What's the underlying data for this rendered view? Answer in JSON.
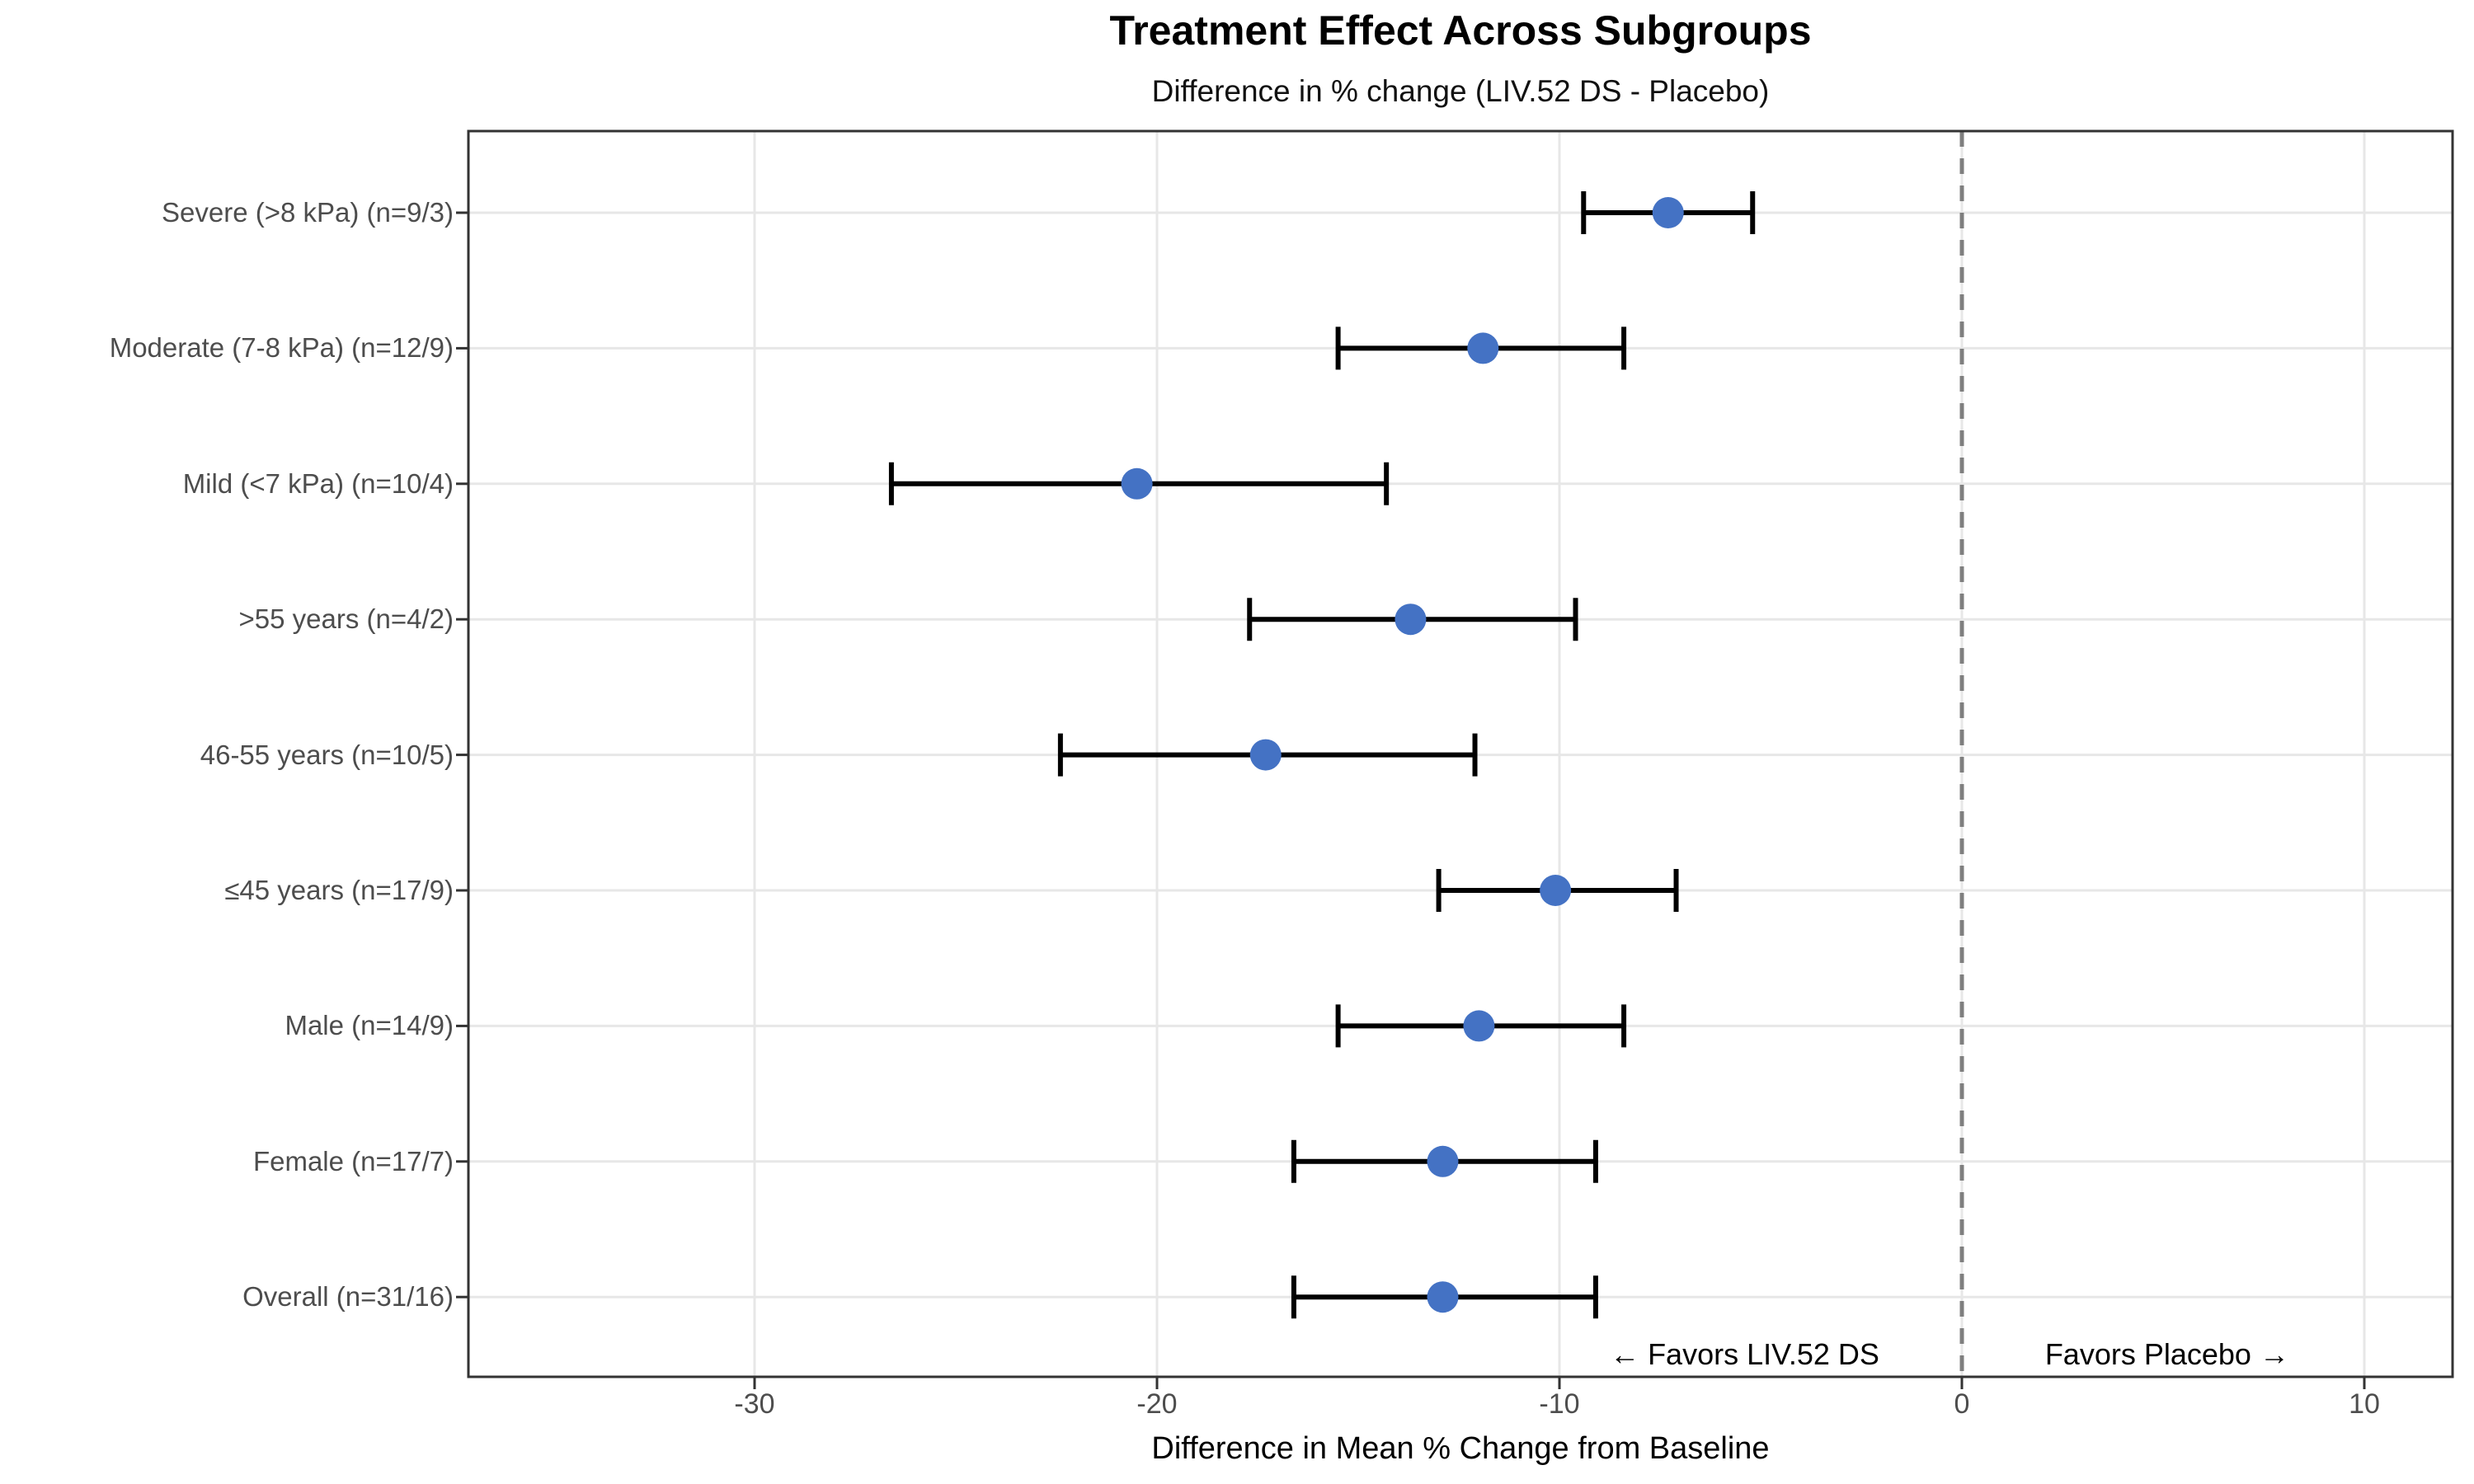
{
  "header": {
    "title": "Treatment Effect Across Subgroups",
    "subtitle": "Difference in % change (LIV.52 DS - Placebo)"
  },
  "chart_data": {
    "type": "scatter",
    "variant": "forest-plot",
    "orientation": "horizontal",
    "title": "Treatment Effect Across Subgroups",
    "subtitle": "Difference in % change (LIV.52 DS - Placebo)",
    "xlabel": "Difference in Mean % Change from Baseline",
    "ylabel": "",
    "x_ticks": [
      -30,
      -20,
      -10,
      0,
      10
    ],
    "xlim": [
      -37.1,
      12.2
    ],
    "grid": true,
    "legend": "none",
    "zero_line": {
      "x": 0,
      "style": "dashed",
      "color": "#7f7f7f"
    },
    "rows": [
      {
        "label": "Severe (>8 kPa) (n=9/3)",
        "estimate": -7.3,
        "ci_low": -9.4,
        "ci_high": -5.2
      },
      {
        "label": "Moderate (7-8 kPa) (n=12/9)",
        "estimate": -11.9,
        "ci_low": -15.5,
        "ci_high": -8.4
      },
      {
        "label": "Mild (<7 kPa) (n=10/4)",
        "estimate": -20.5,
        "ci_low": -26.6,
        "ci_high": -14.3
      },
      {
        "label": ">55 years (n=4/2)",
        "estimate": -13.7,
        "ci_low": -17.7,
        "ci_high": -9.6
      },
      {
        "label": "46-55 years (n=10/5)",
        "estimate": -17.3,
        "ci_low": -22.4,
        "ci_high": -12.1
      },
      {
        "label": "≤45 years (n=17/9)",
        "estimate": -10.1,
        "ci_low": -13.0,
        "ci_high": -7.1
      },
      {
        "label": "Male (n=14/9)",
        "estimate": -12.0,
        "ci_low": -15.5,
        "ci_high": -8.4
      },
      {
        "label": "Female (n=17/7)",
        "estimate": -12.9,
        "ci_low": -16.6,
        "ci_high": -9.1
      },
      {
        "label": "Overall (n=31/16)",
        "estimate": -12.9,
        "ci_low": -16.6,
        "ci_high": -9.1
      }
    ],
    "annotations": {
      "left": {
        "text": "← Favors LIV.52 DS",
        "x": -5.4
      },
      "right": {
        "text": "Favors Placebo →",
        "x": 5.1
      }
    },
    "colors": {
      "point": "#4472C4",
      "error_bar": "#000000",
      "gridline": "#e7e7e7",
      "panel_border": "#333333",
      "tick_mark": "#333333",
      "axis_text": "#4d4d4d"
    }
  }
}
